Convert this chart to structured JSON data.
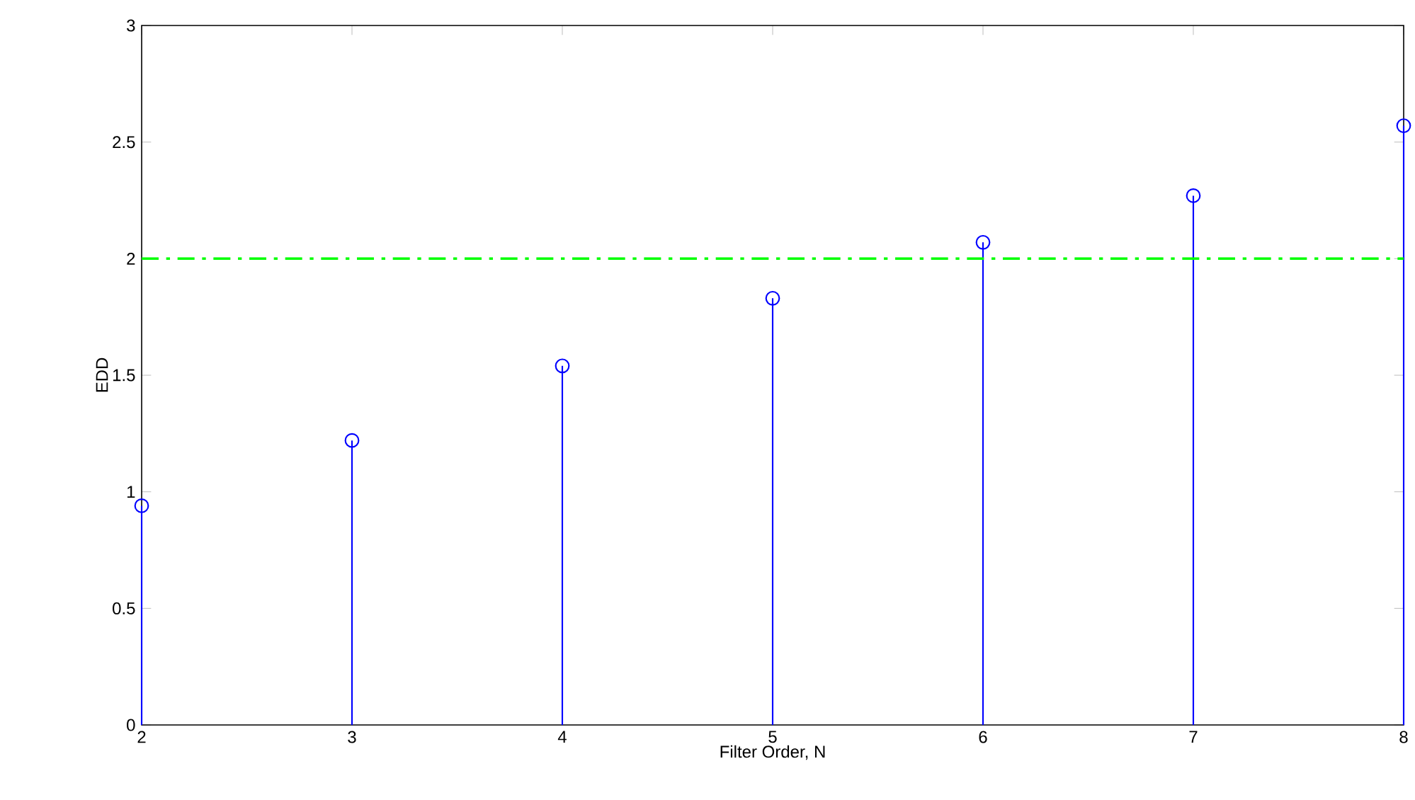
{
  "chart_data": {
    "type": "lollipop",
    "xlabel": "Filter Order, N",
    "ylabel": "EDD",
    "x": [
      2,
      3,
      4,
      5,
      6,
      7,
      8
    ],
    "series": [
      {
        "color": "#0000ff",
        "values": [
          0.94,
          1.22,
          1.54,
          1.83,
          2.07,
          2.27,
          2.57
        ]
      }
    ],
    "marker": "circle",
    "xlim": [
      2,
      8
    ],
    "xticks": [
      2,
      3,
      4,
      5,
      6,
      7,
      8
    ],
    "ylim": [
      0,
      3
    ],
    "yticks": [
      0,
      0.5,
      1,
      1.5,
      2,
      2.5,
      3
    ],
    "ref_lines": [
      {
        "axis": "y",
        "value": 2,
        "color": "#00ff00",
        "line_style": "dashdot"
      }
    ]
  }
}
